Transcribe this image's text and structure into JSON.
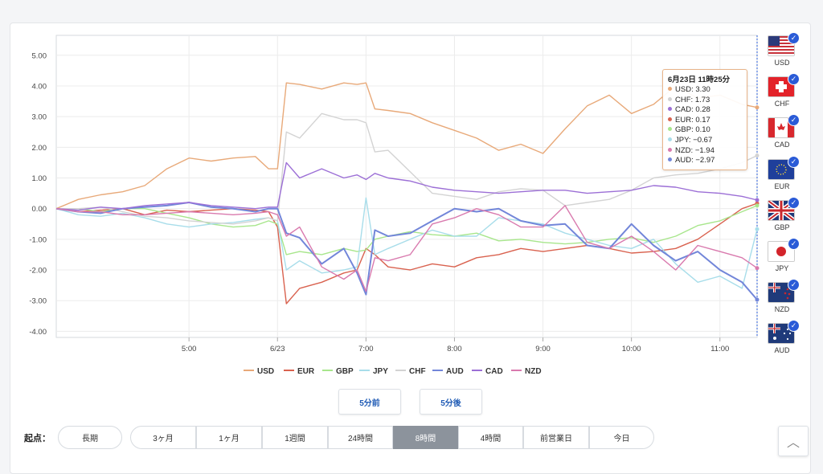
{
  "chart_data": {
    "type": "line",
    "ylim": [
      -4.0,
      5.0
    ],
    "yticks": [
      "5.00",
      "4.00",
      "3.00",
      "2.00",
      "1.00",
      "0.00",
      "-1.00",
      "-2.00",
      "-3.00",
      "-4.00"
    ],
    "xticks": [
      {
        "label": "5:00",
        "x": 5.0
      },
      {
        "label": "6/23",
        "x": 6.0
      },
      {
        "label": "7:00",
        "x": 7.0
      },
      {
        "label": "8:00",
        "x": 8.0
      },
      {
        "label": "9:00",
        "x": 9.0
      },
      {
        "label": "10:00",
        "x": 10.0
      },
      {
        "label": "11:00",
        "x": 11.0
      }
    ],
    "xlim": [
      3.5,
      11.42
    ],
    "grid": true,
    "legend_position": "bottom",
    "x": [
      3.5,
      3.75,
      4.0,
      4.25,
      4.5,
      4.75,
      5.0,
      5.25,
      5.5,
      5.75,
      5.9,
      6.0,
      6.1,
      6.25,
      6.5,
      6.75,
      6.9,
      7.0,
      7.1,
      7.25,
      7.5,
      7.75,
      8.0,
      8.25,
      8.5,
      8.75,
      9.0,
      9.25,
      9.5,
      9.75,
      10.0,
      10.25,
      10.5,
      10.75,
      11.0,
      11.25,
      11.42
    ],
    "series": [
      {
        "name": "USD",
        "color": "#e8a979",
        "values": [
          0.0,
          0.3,
          0.45,
          0.55,
          0.75,
          1.3,
          1.65,
          1.55,
          1.65,
          1.7,
          1.3,
          1.3,
          4.1,
          4.05,
          3.9,
          4.1,
          4.05,
          4.1,
          3.25,
          3.2,
          3.1,
          2.8,
          2.55,
          2.3,
          1.9,
          2.1,
          1.8,
          2.6,
          3.35,
          3.7,
          3.1,
          3.4,
          4.0,
          3.6,
          3.7,
          3.4,
          3.3
        ]
      },
      {
        "name": "EUR",
        "color": "#d9624f",
        "values": [
          0.0,
          -0.1,
          -0.05,
          0.0,
          -0.2,
          -0.05,
          -0.1,
          -0.05,
          0.0,
          -0.05,
          -0.1,
          -0.6,
          -3.1,
          -2.6,
          -2.4,
          -2.1,
          -2.0,
          -1.3,
          -1.5,
          -1.9,
          -2.0,
          -1.8,
          -1.9,
          -1.6,
          -1.5,
          -1.3,
          -1.4,
          -1.3,
          -1.2,
          -1.3,
          -1.45,
          -1.4,
          -1.3,
          -1.0,
          -0.5,
          0.0,
          0.17
        ]
      },
      {
        "name": "GBP",
        "color": "#a8e68c",
        "values": [
          0.0,
          0.0,
          -0.1,
          0.0,
          0.0,
          -0.15,
          -0.3,
          -0.5,
          -0.6,
          -0.55,
          -0.4,
          -0.5,
          -1.5,
          -1.4,
          -1.5,
          -1.3,
          -1.4,
          -1.35,
          -1.0,
          -0.9,
          -0.75,
          -0.85,
          -0.9,
          -0.8,
          -1.05,
          -1.0,
          -1.1,
          -1.15,
          -1.1,
          -1.0,
          -0.95,
          -1.1,
          -0.9,
          -0.55,
          -0.4,
          -0.1,
          0.1
        ]
      },
      {
        "name": "JPY",
        "color": "#a8ddea",
        "values": [
          0.0,
          -0.2,
          -0.25,
          -0.15,
          -0.3,
          -0.5,
          -0.6,
          -0.5,
          -0.45,
          -0.35,
          -0.3,
          -0.4,
          -2.0,
          -1.7,
          -2.1,
          -2.0,
          -1.9,
          0.35,
          -1.5,
          -1.3,
          -1.0,
          -0.7,
          -0.9,
          -0.9,
          -0.3,
          -0.4,
          -0.5,
          -0.8,
          -1.0,
          -1.2,
          -1.3,
          -1.0,
          -1.8,
          -2.4,
          -2.2,
          -2.6,
          -0.67
        ]
      },
      {
        "name": "CHF",
        "color": "#d3d3d3",
        "values": [
          0.0,
          0.0,
          0.05,
          -0.1,
          -0.25,
          -0.3,
          -0.4,
          -0.45,
          -0.5,
          -0.4,
          -0.3,
          -0.4,
          2.5,
          2.3,
          3.1,
          2.9,
          2.9,
          2.8,
          1.85,
          1.9,
          1.2,
          0.5,
          0.4,
          0.3,
          0.55,
          0.65,
          0.6,
          0.1,
          0.2,
          0.3,
          0.6,
          1.0,
          1.1,
          1.15,
          1.3,
          1.5,
          1.73
        ]
      },
      {
        "name": "AUD",
        "color": "#7286d9",
        "values": [
          0.0,
          -0.1,
          -0.15,
          0.0,
          0.05,
          0.1,
          0.2,
          0.05,
          0.0,
          -0.1,
          0.0,
          0.0,
          -0.8,
          -0.95,
          -1.8,
          -1.3,
          -2.1,
          -2.8,
          -0.7,
          -0.9,
          -0.8,
          -0.4,
          0.0,
          -0.1,
          0.0,
          -0.4,
          -0.55,
          -0.5,
          -1.2,
          -1.3,
          -0.5,
          -1.2,
          -1.7,
          -1.4,
          -2.0,
          -2.4,
          -2.97
        ]
      },
      {
        "name": "CAD",
        "color": "#9c6fd6",
        "values": [
          0.0,
          -0.05,
          0.05,
          0.0,
          0.1,
          0.15,
          0.2,
          0.1,
          0.05,
          0.0,
          0.05,
          0.05,
          1.5,
          1.0,
          1.3,
          1.0,
          1.1,
          0.95,
          1.15,
          1.0,
          0.9,
          0.7,
          0.6,
          0.55,
          0.5,
          0.55,
          0.6,
          0.6,
          0.5,
          0.55,
          0.6,
          0.75,
          0.7,
          0.55,
          0.5,
          0.4,
          0.28
        ]
      },
      {
        "name": "NZD",
        "color": "#d97aae",
        "values": [
          0.0,
          -0.1,
          -0.1,
          -0.2,
          -0.2,
          -0.15,
          -0.1,
          -0.15,
          -0.2,
          -0.15,
          -0.1,
          -0.2,
          -0.9,
          -0.6,
          -1.9,
          -2.3,
          -2.0,
          -2.7,
          -1.6,
          -1.7,
          -1.5,
          -0.5,
          -0.3,
          0.0,
          -0.2,
          -0.6,
          -0.6,
          0.1,
          -1.1,
          -1.3,
          -0.9,
          -1.4,
          -2.0,
          -1.2,
          -1.4,
          -1.6,
          -1.94
        ]
      }
    ]
  },
  "tooltip": {
    "title": "6月23日 11時25分",
    "rows": [
      {
        "code": "USD",
        "value": "3.30",
        "color": "#e8a979"
      },
      {
        "code": "CHF",
        "value": "1.73",
        "color": "#d3d3d3"
      },
      {
        "code": "CAD",
        "value": "0.28",
        "color": "#9c6fd6"
      },
      {
        "code": "EUR",
        "value": "0.17",
        "color": "#d9624f"
      },
      {
        "code": "GBP",
        "value": "0.10",
        "color": "#a8e68c"
      },
      {
        "code": "JPY",
        "value": "−0.67",
        "color": "#a8ddea"
      },
      {
        "code": "NZD",
        "value": "−1.94",
        "color": "#d97aae"
      },
      {
        "code": "AUD",
        "value": "−2.97",
        "color": "#7286d9"
      }
    ]
  },
  "flags": [
    {
      "code": "USD",
      "icon": "us-flag-icon"
    },
    {
      "code": "CHF",
      "icon": "ch-flag-icon"
    },
    {
      "code": "CAD",
      "icon": "ca-flag-icon"
    },
    {
      "code": "EUR",
      "icon": "eu-flag-icon"
    },
    {
      "code": "GBP",
      "icon": "gb-flag-icon"
    },
    {
      "code": "JPY",
      "icon": "jp-flag-icon"
    },
    {
      "code": "NZD",
      "icon": "nz-flag-icon"
    },
    {
      "code": "AUD",
      "icon": "au-flag-icon"
    }
  ],
  "check_mark": "✓",
  "nav": {
    "prev_label": "5分前",
    "next_label": "5分後"
  },
  "range": {
    "label": "起点：",
    "options": [
      "長期",
      "3ヶ月",
      "1ヶ月",
      "1週間",
      "24時間",
      "8時間",
      "4時間",
      "前営業日",
      "今日"
    ],
    "selected": "8時間"
  },
  "scroll_top_icon": "chevron-up-icon",
  "scroll_top_glyph": "︿"
}
